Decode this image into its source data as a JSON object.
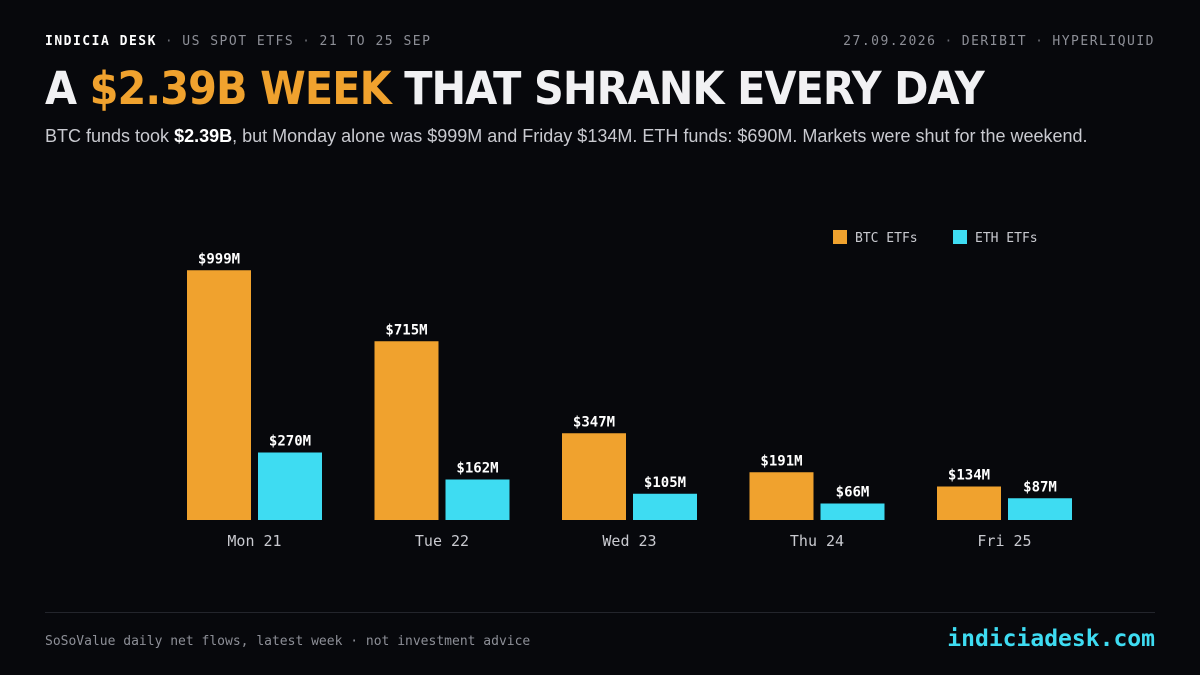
{
  "header": {
    "brand": "INDICIA DESK",
    "section": "US SPOT ETFS",
    "range": "21 TO 25 SEP",
    "date": "27.09.2026",
    "source_a": "DERIBIT",
    "source_b": "HYPERLIQUID"
  },
  "headline": {
    "pre": "A ",
    "accent": "$2.39B WEEK",
    "post": " THAT SHRANK EVERY DAY"
  },
  "subtitle": {
    "part1": "BTC funds took ",
    "bold": "$2.39B",
    "part2": ", but Monday alone was $999M and Friday $134M. ETH funds: $690M. Markets were shut for the weekend."
  },
  "colors": {
    "btc": "#f0a22e",
    "eth": "#3edcf2"
  },
  "chart_data": {
    "type": "bar",
    "categories": [
      "Mon 21",
      "Tue 22",
      "Wed 23",
      "Thu 24",
      "Fri 25"
    ],
    "series": [
      {
        "name": "BTC ETFs",
        "values": [
          999,
          715,
          347,
          191,
          134
        ],
        "labels": [
          "$999M",
          "$715M",
          "$347M",
          "$191M",
          "$134M"
        ]
      },
      {
        "name": "ETH ETFs",
        "values": [
          270,
          162,
          105,
          66,
          87
        ],
        "labels": [
          "$270M",
          "$162M",
          "$105M",
          "$66M",
          "$87M"
        ]
      }
    ],
    "unit": "$M",
    "ylim": [
      0,
      1000
    ],
    "grid": false,
    "legend_position": "top-right"
  },
  "footer": {
    "source": "SoSoValue daily net flows, latest week · not investment advice",
    "site": "indiciadesk.com"
  }
}
